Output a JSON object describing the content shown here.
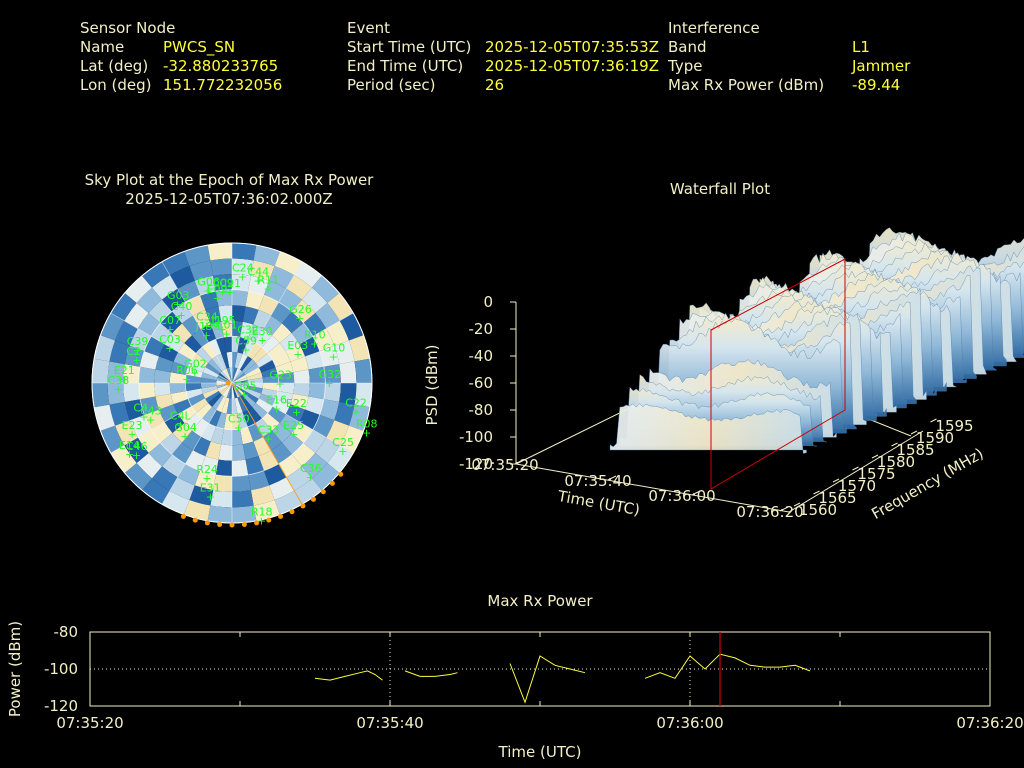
{
  "header": {
    "sensor": {
      "heading": "Sensor Node",
      "rows": [
        {
          "label": "Name",
          "value": "PWCS_SN"
        },
        {
          "label": "Lat (deg)",
          "value": "-32.880233765"
        },
        {
          "label": "Lon (deg)",
          "value": "151.772232056"
        }
      ]
    },
    "event": {
      "heading": "Event",
      "rows": [
        {
          "label": "Start Time (UTC)",
          "value": "2025-12-05T07:35:53Z"
        },
        {
          "label": "End Time (UTC)",
          "value": "2025-12-05T07:36:19Z"
        },
        {
          "label": "Period (sec)",
          "value": "26"
        }
      ]
    },
    "interference": {
      "heading": "Interference",
      "rows": [
        {
          "label": "Band",
          "value": "L1"
        },
        {
          "label": "Type",
          "value": "Jammer"
        },
        {
          "label": "Max Rx Power (dBm)",
          "value": "-89.44"
        }
      ]
    }
  },
  "colors": {
    "background": "#000000",
    "label": "#f3efc6",
    "value": "#ffff3a",
    "satellite": "#22ff22",
    "marker_line": "#d00000",
    "jammer_marker": "#ff9900"
  },
  "chart_data": [
    {
      "type": "scatter",
      "name": "sky",
      "title": "Sky Plot at the Epoch of Max Rx Power",
      "subtitle": "2025-12-05T07:36:02.000Z",
      "satellites": [
        {
          "id": "C24",
          "az": 2,
          "el": 82
        },
        {
          "id": "C44",
          "az": 10,
          "el": 80
        },
        {
          "id": "R11",
          "az": 16,
          "el": 76
        },
        {
          "id": "G06",
          "az": 343,
          "el": 75
        },
        {
          "id": "C09",
          "az": 351,
          "el": 72
        },
        {
          "id": "C21",
          "az": 355,
          "el": 71
        },
        {
          "id": "G03",
          "az": 325,
          "el": 76
        },
        {
          "id": "G26",
          "az": 40,
          "el": 68
        },
        {
          "id": "C40",
          "az": 323,
          "el": 68
        },
        {
          "id": "E09",
          "az": 347,
          "el": 68
        },
        {
          "id": "C07",
          "az": 312,
          "el": 66
        },
        {
          "id": "C34",
          "az": 334,
          "el": 52
        },
        {
          "id": "J199",
          "az": 330,
          "el": 46
        },
        {
          "id": "C01",
          "az": 348,
          "el": 42
        },
        {
          "id": "C32",
          "az": 10,
          "el": 38
        },
        {
          "id": "E30",
          "az": 25,
          "el": 40
        },
        {
          "id": "R10",
          "az": 58,
          "el": 64
        },
        {
          "id": "C03",
          "az": 302,
          "el": 58
        },
        {
          "id": "C39",
          "az": 292,
          "el": 78
        },
        {
          "id": "J195",
          "az": 345,
          "el": 46
        },
        {
          "id": "C59",
          "az": 10,
          "el": 30
        },
        {
          "id": "E03",
          "az": 58,
          "el": 50
        },
        {
          "id": "G10",
          "az": 70,
          "el": 72
        },
        {
          "id": "C2",
          "az": 287,
          "el": 76
        },
        {
          "id": "G02",
          "az": 293,
          "el": 34
        },
        {
          "id": "E21",
          "az": 276,
          "el": 82
        },
        {
          "id": "R06",
          "az": 283,
          "el": 38
        },
        {
          "id": "C38",
          "az": 271,
          "el": 86
        },
        {
          "id": "G05",
          "az": 120,
          "el": 5
        },
        {
          "id": "G23",
          "az": 80,
          "el": 30
        },
        {
          "id": "G32",
          "az": 85,
          "el": 65
        },
        {
          "id": "C22",
          "az": 100,
          "el": 85
        },
        {
          "id": "R08",
          "az": 108,
          "el": 96
        },
        {
          "id": "C43",
          "az": 252,
          "el": 66
        },
        {
          "id": "C4",
          "az": 255,
          "el": 70
        },
        {
          "id": "C4L",
          "az": 240,
          "el": 48
        },
        {
          "id": "E16",
          "az": 115,
          "el": 30
        },
        {
          "id": "E22",
          "az": 110,
          "el": 44
        },
        {
          "id": "E25",
          "az": 128,
          "el": 50
        },
        {
          "id": "E23",
          "az": 248,
          "el": 82
        },
        {
          "id": "E14",
          "az": 240,
          "el": 90
        },
        {
          "id": "C50",
          "az": 180,
          "el": 26
        },
        {
          "id": "C33",
          "az": 148,
          "el": 40
        },
        {
          "id": "G04",
          "az": 230,
          "el": 50
        },
        {
          "id": "C46",
          "az": 238,
          "el": 86
        },
        {
          "id": "R24",
          "az": 200,
          "el": 66
        },
        {
          "id": "E31",
          "az": 195,
          "el": 78
        },
        {
          "id": "C36",
          "az": 140,
          "el": 80
        },
        {
          "id": "R18",
          "az": 170,
          "el": 94
        },
        {
          "id": "C25",
          "az": 120,
          "el": 86
        }
      ]
    },
    {
      "type": "area",
      "name": "waterfall",
      "title": "Waterfall Plot",
      "xlabel": "Time (UTC)",
      "ylabel": "Frequency (MHz)",
      "zlabel": "PSD (dBm)",
      "x_ticks": [
        "07:35:20",
        "07:35:40",
        "07:36:00",
        "07:36:20"
      ],
      "y_ticks": [
        "1560",
        "1565",
        "1570",
        "1575",
        "1580",
        "1585",
        "1590",
        "1595"
      ],
      "z_ticks": [
        "0",
        "-20",
        "-40",
        "-60",
        "-80",
        "-100",
        "-120"
      ],
      "zlim": [
        -120,
        0
      ]
    },
    {
      "type": "line",
      "name": "max-rx-power",
      "title": "Max Rx Power",
      "xlabel": "Time (UTC)",
      "ylabel": "Power (dBm)",
      "x_ticks": [
        "07:35:20",
        "07:35:40",
        "07:36:00",
        "07:36:20"
      ],
      "y_ticks": [
        "-80",
        "-100",
        "-120"
      ],
      "xlim": [
        0,
        60
      ],
      "ylim": [
        -120,
        -80
      ],
      "marker_x": 42,
      "segments": [
        [
          [
            15,
            -105
          ],
          [
            16,
            -106
          ],
          [
            17,
            -104
          ],
          [
            18,
            -102
          ],
          [
            18.5,
            -101
          ],
          [
            19,
            -103
          ],
          [
            19.5,
            -106
          ]
        ],
        [
          [
            21,
            -101
          ],
          [
            22,
            -104
          ],
          [
            23,
            -104
          ],
          [
            24,
            -103
          ],
          [
            24.5,
            -102
          ]
        ],
        [
          [
            28,
            -97
          ],
          [
            29,
            -118
          ],
          [
            30,
            -93
          ],
          [
            31,
            -98
          ],
          [
            32,
            -100
          ],
          [
            33,
            -102
          ]
        ],
        [
          [
            37,
            -105
          ],
          [
            38,
            -102
          ],
          [
            39,
            -105
          ],
          [
            40,
            -93
          ],
          [
            41,
            -100
          ],
          [
            42,
            -92
          ],
          [
            43,
            -94
          ],
          [
            44,
            -98
          ],
          [
            45,
            -99
          ],
          [
            46,
            -99
          ],
          [
            47,
            -98
          ],
          [
            48,
            -101
          ]
        ]
      ]
    }
  ]
}
